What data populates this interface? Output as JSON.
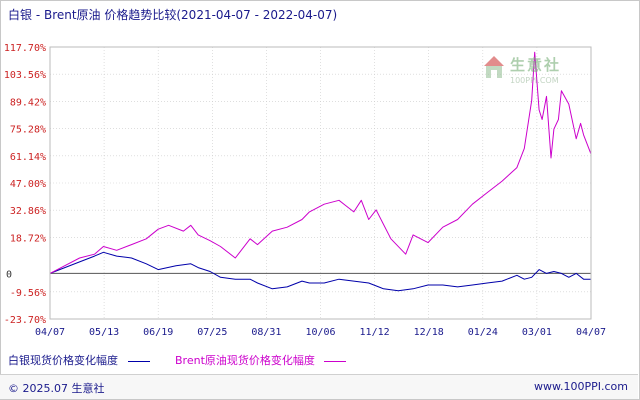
{
  "header": {
    "title": "白银 - Brent原油 价格趋势比较(2021-04-07 - 2022-04-07)"
  },
  "watermark": {
    "name": "生意社",
    "url": "100PPI.COM"
  },
  "footer": {
    "copyright": "© 2025.07 生意社",
    "url": "www.100PPI.com"
  },
  "colors": {
    "silver": "#0000aa",
    "brent": "#cc00cc",
    "tick": "#cc2222",
    "grid": "#cccccc",
    "zero_line": "#555555"
  },
  "chart_data": {
    "type": "line",
    "title": "白银 - Brent原油 价格趋势比较(2021-04-07 - 2022-04-07)",
    "xlabel": "",
    "ylabel": "",
    "grid": true,
    "ylim": [
      -23.7,
      117.7
    ],
    "y_ticks": [
      "117.70%",
      "103.56%",
      "89.42%",
      "75.28%",
      "61.14%",
      "47.00%",
      "32.86%",
      "18.72%",
      "0",
      "-9.56%",
      "-23.70%"
    ],
    "y_tick_values": [
      117.7,
      103.56,
      89.42,
      75.28,
      61.14,
      47.0,
      32.86,
      18.72,
      0,
      -9.56,
      -23.7
    ],
    "x_ticks": [
      "04/07",
      "05/13",
      "06/19",
      "07/25",
      "08/31",
      "10/06",
      "11/12",
      "12/18",
      "01/24",
      "03/01",
      "04/07"
    ],
    "x_range_days": [
      0,
      365
    ],
    "legend_position": "bottom",
    "series": [
      {
        "name": "白银现货价格变化幅度",
        "color": "#0000aa",
        "x": [
          0,
          10,
          20,
          30,
          36,
          45,
          55,
          65,
          73,
          85,
          95,
          100,
          108,
          115,
          125,
          135,
          140,
          150,
          160,
          170,
          175,
          185,
          195,
          205,
          215,
          225,
          235,
          245,
          255,
          265,
          275,
          285,
          295,
          305,
          315,
          320,
          325,
          330,
          335,
          340,
          345,
          350,
          355,
          360,
          365
        ],
        "values": [
          0,
          3,
          6,
          9,
          11,
          9,
          8,
          5,
          2,
          4,
          5,
          3,
          1,
          -2,
          -3,
          -3,
          -5,
          -8,
          -7,
          -4,
          -5,
          -5,
          -3,
          -4,
          -5,
          -8,
          -9,
          -8,
          -6,
          -6,
          -7,
          -6,
          -5,
          -4,
          -1,
          -3,
          -2,
          2,
          0,
          1,
          0,
          -2,
          0,
          -3,
          -3
        ]
      },
      {
        "name": "Brent原油现货价格变化幅度",
        "color": "#cc00cc",
        "x": [
          0,
          10,
          20,
          30,
          36,
          45,
          55,
          65,
          73,
          80,
          90,
          95,
          100,
          108,
          115,
          125,
          135,
          140,
          150,
          160,
          170,
          175,
          185,
          195,
          200,
          205,
          210,
          215,
          220,
          230,
          240,
          245,
          255,
          265,
          275,
          285,
          295,
          305,
          315,
          320,
          325,
          327,
          330,
          332,
          335,
          338,
          340,
          343,
          345,
          350,
          355,
          358,
          360,
          365
        ],
        "values": [
          0,
          4,
          8,
          10,
          14,
          12,
          15,
          18,
          23,
          25,
          22,
          25,
          20,
          17,
          14,
          8,
          18,
          15,
          22,
          24,
          28,
          32,
          36,
          38,
          35,
          32,
          38,
          28,
          33,
          18,
          10,
          20,
          16,
          24,
          28,
          36,
          42,
          48,
          55,
          65,
          90,
          115,
          85,
          80,
          92,
          60,
          75,
          80,
          95,
          88,
          70,
          78,
          72,
          62
        ]
      }
    ]
  }
}
